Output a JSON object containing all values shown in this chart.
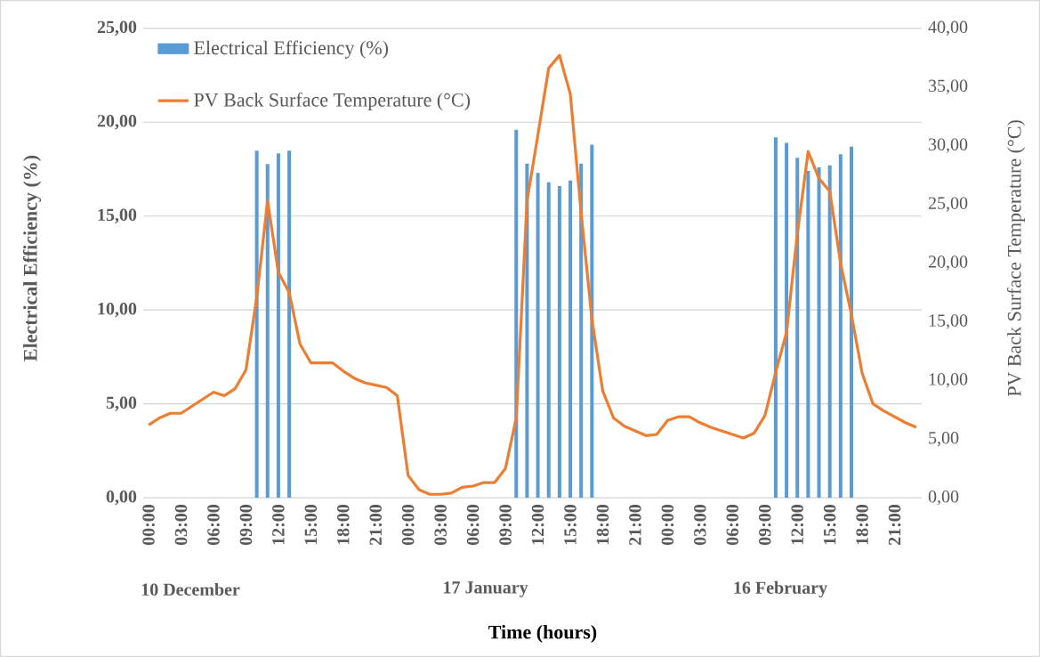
{
  "chart_data": {
    "type": "bar",
    "xlabel": "Time (hours)",
    "ylabel": "Electrical Efficiency (%)",
    "y2label": "PV Back Surface Temperature (°C)",
    "categories": [
      "00:00",
      null,
      null,
      "03:00",
      null,
      null,
      "06:00",
      null,
      null,
      "09:00",
      null,
      null,
      "12:00",
      null,
      null,
      "15:00",
      null,
      null,
      "18:00",
      null,
      null,
      "21:00",
      null,
      null,
      "00:00",
      null,
      null,
      "03:00",
      null,
      null,
      "06:00",
      null,
      null,
      "09:00",
      null,
      null,
      "12:00",
      null,
      null,
      "15:00",
      null,
      null,
      "18:00",
      null,
      null,
      "21:00",
      null,
      null,
      "00:00",
      null,
      null,
      "03:00",
      null,
      null,
      "06:00",
      null,
      null,
      "09:00",
      null,
      null,
      "12:00",
      null,
      null,
      "15:00",
      null,
      null,
      "18:00",
      null,
      null,
      "21:00",
      null,
      null
    ],
    "series": [
      {
        "name": "Electrical Efficiency (%)",
        "color": "#5b9bd5",
        "values": [
          null,
          null,
          null,
          null,
          null,
          null,
          null,
          null,
          null,
          null,
          18.48,
          17.77,
          18.34,
          18.48,
          null,
          null,
          null,
          null,
          null,
          null,
          null,
          null,
          null,
          null,
          null,
          null,
          null,
          null,
          null,
          null,
          null,
          null,
          null,
          null,
          19.6,
          17.8,
          17.3,
          16.8,
          16.6,
          16.9,
          17.8,
          18.8,
          null,
          null,
          null,
          null,
          null,
          null,
          null,
          null,
          null,
          null,
          null,
          null,
          null,
          null,
          null,
          null,
          19.2,
          18.9,
          18.1,
          17.4,
          17.6,
          17.7,
          18.3,
          18.7,
          null,
          null,
          null,
          null,
          null,
          null
        ]
      },
      {
        "name": "PV Back Surface Temperature (°C)",
        "type": "line",
        "axis": "y2",
        "color": "#ed7d31",
        "values": [
          6.2,
          6.8,
          7.2,
          7.2,
          7.8,
          8.4,
          9.0,
          8.7,
          9.3,
          10.9,
          17.1,
          25.3,
          19.2,
          17.5,
          13.1,
          11.5,
          11.5,
          11.5,
          10.8,
          10.2,
          9.8,
          9.6,
          9.4,
          8.7,
          1.9,
          0.7,
          0.3,
          0.3,
          0.4,
          0.9,
          1.0,
          1.3,
          1.3,
          2.5,
          6.8,
          25.3,
          30.9,
          36.6,
          37.7,
          34.4,
          24.3,
          15.2,
          9.1,
          6.8,
          6.1,
          5.7,
          5.3,
          5.4,
          6.6,
          6.9,
          6.9,
          6.4,
          6.0,
          5.7,
          5.4,
          5.1,
          5.5,
          7.0,
          10.7,
          14.1,
          22.5,
          29.5,
          27.2,
          26.1,
          20.0,
          15.6,
          10.6,
          8.0,
          7.4,
          6.9,
          6.4,
          6.0
        ]
      }
    ],
    "ylim": [
      0,
      25
    ],
    "yticks": [
      {
        "value": 0,
        "label": "0,00"
      },
      {
        "value": 5,
        "label": "5,00"
      },
      {
        "value": 10,
        "label": "10,00"
      },
      {
        "value": 15,
        "label": "15,00"
      },
      {
        "value": 20,
        "label": "20,00"
      },
      {
        "value": 25,
        "label": "25,00"
      }
    ],
    "y2lim": [
      0,
      40
    ],
    "y2ticks": [
      {
        "value": 0,
        "label": "0,00"
      },
      {
        "value": 5,
        "label": "5,00"
      },
      {
        "value": 10,
        "label": "10,00"
      },
      {
        "value": 15,
        "label": "15,00"
      },
      {
        "value": 20,
        "label": "20,00"
      },
      {
        "value": 25,
        "label": "25,00"
      },
      {
        "value": 30,
        "label": "30,00"
      },
      {
        "value": 35,
        "label": "35,00"
      },
      {
        "value": 40,
        "label": "40,00"
      }
    ],
    "annotations": [
      "10 December",
      "17 January",
      "16 February"
    ],
    "grid": "y",
    "legend": "top left",
    "marker": "none",
    "line_style": "solid"
  }
}
